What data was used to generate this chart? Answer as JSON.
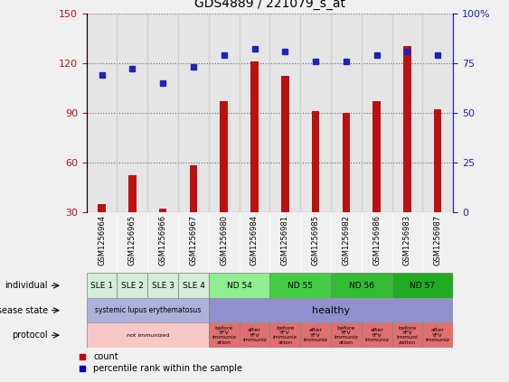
{
  "title": "GDS4889 / 221079_s_at",
  "samples": [
    "GSM1256964",
    "GSM1256965",
    "GSM1256966",
    "GSM1256967",
    "GSM1256980",
    "GSM1256984",
    "GSM1256981",
    "GSM1256985",
    "GSM1256982",
    "GSM1256986",
    "GSM1256983",
    "GSM1256987"
  ],
  "counts": [
    35,
    52,
    32,
    58,
    97,
    121,
    112,
    91,
    90,
    97,
    130,
    92
  ],
  "percentiles": [
    69,
    72,
    65,
    73,
    79,
    82,
    81,
    76,
    76,
    79,
    81,
    79
  ],
  "ylim_left": [
    30,
    150
  ],
  "ylim_right": [
    0,
    100
  ],
  "yticks_left": [
    30,
    60,
    90,
    120,
    150
  ],
  "yticks_right": [
    0,
    25,
    50,
    75,
    100
  ],
  "bar_color": "#bb1111",
  "dot_color": "#2222bb",
  "bg_color": "#f0f0f0",
  "plot_bg": "#ffffff",
  "individual_spans": [
    {
      "label": "SLE 1",
      "start": 0,
      "end": 1,
      "color": "#d4edda"
    },
    {
      "label": "SLE 2",
      "start": 1,
      "end": 2,
      "color": "#d4edda"
    },
    {
      "label": "SLE 3",
      "start": 2,
      "end": 3,
      "color": "#d4edda"
    },
    {
      "label": "SLE 4",
      "start": 3,
      "end": 4,
      "color": "#d4edda"
    },
    {
      "label": "ND 54",
      "start": 4,
      "end": 6,
      "color": "#90ee90"
    },
    {
      "label": "ND 55",
      "start": 6,
      "end": 8,
      "color": "#44cc44"
    },
    {
      "label": "ND 56",
      "start": 8,
      "end": 10,
      "color": "#33bb33"
    },
    {
      "label": "ND 57",
      "start": 10,
      "end": 12,
      "color": "#22aa22"
    }
  ],
  "disease_spans": [
    {
      "label": "systemic lupus erythematosus",
      "start": 0,
      "end": 4,
      "color": "#b0b0dd"
    },
    {
      "label": "healthy",
      "start": 4,
      "end": 12,
      "color": "#9090cc"
    }
  ],
  "protocol_spans": [
    {
      "label": "not immunized",
      "start": 0,
      "end": 4,
      "color": "#f8c8c8"
    },
    {
      "label": "before\nYFV\nimmuniz\nation",
      "start": 4,
      "end": 5,
      "color": "#e07070"
    },
    {
      "label": "after\nYFV\nimmuniz",
      "start": 5,
      "end": 6,
      "color": "#e07070"
    },
    {
      "label": "before\nYFV\nimmuniz\nation",
      "start": 6,
      "end": 7,
      "color": "#e07070"
    },
    {
      "label": "after\nYFV\nimmuniz",
      "start": 7,
      "end": 8,
      "color": "#e07070"
    },
    {
      "label": "before\nYFV\nimmuniz\nation",
      "start": 8,
      "end": 9,
      "color": "#e07070"
    },
    {
      "label": "after\nYFV\nimmuniz",
      "start": 9,
      "end": 10,
      "color": "#e07070"
    },
    {
      "label": "before\nYFV\nimmuni\nzation",
      "start": 10,
      "end": 11,
      "color": "#e07070"
    },
    {
      "label": "after\nYFV\nimmuniz",
      "start": 11,
      "end": 12,
      "color": "#e07070"
    }
  ],
  "row_labels": [
    "individual",
    "disease state",
    "protocol"
  ],
  "legend_count_color": "#cc0000",
  "legend_dot_color": "#0000cc",
  "col_bg": "#cccccc"
}
